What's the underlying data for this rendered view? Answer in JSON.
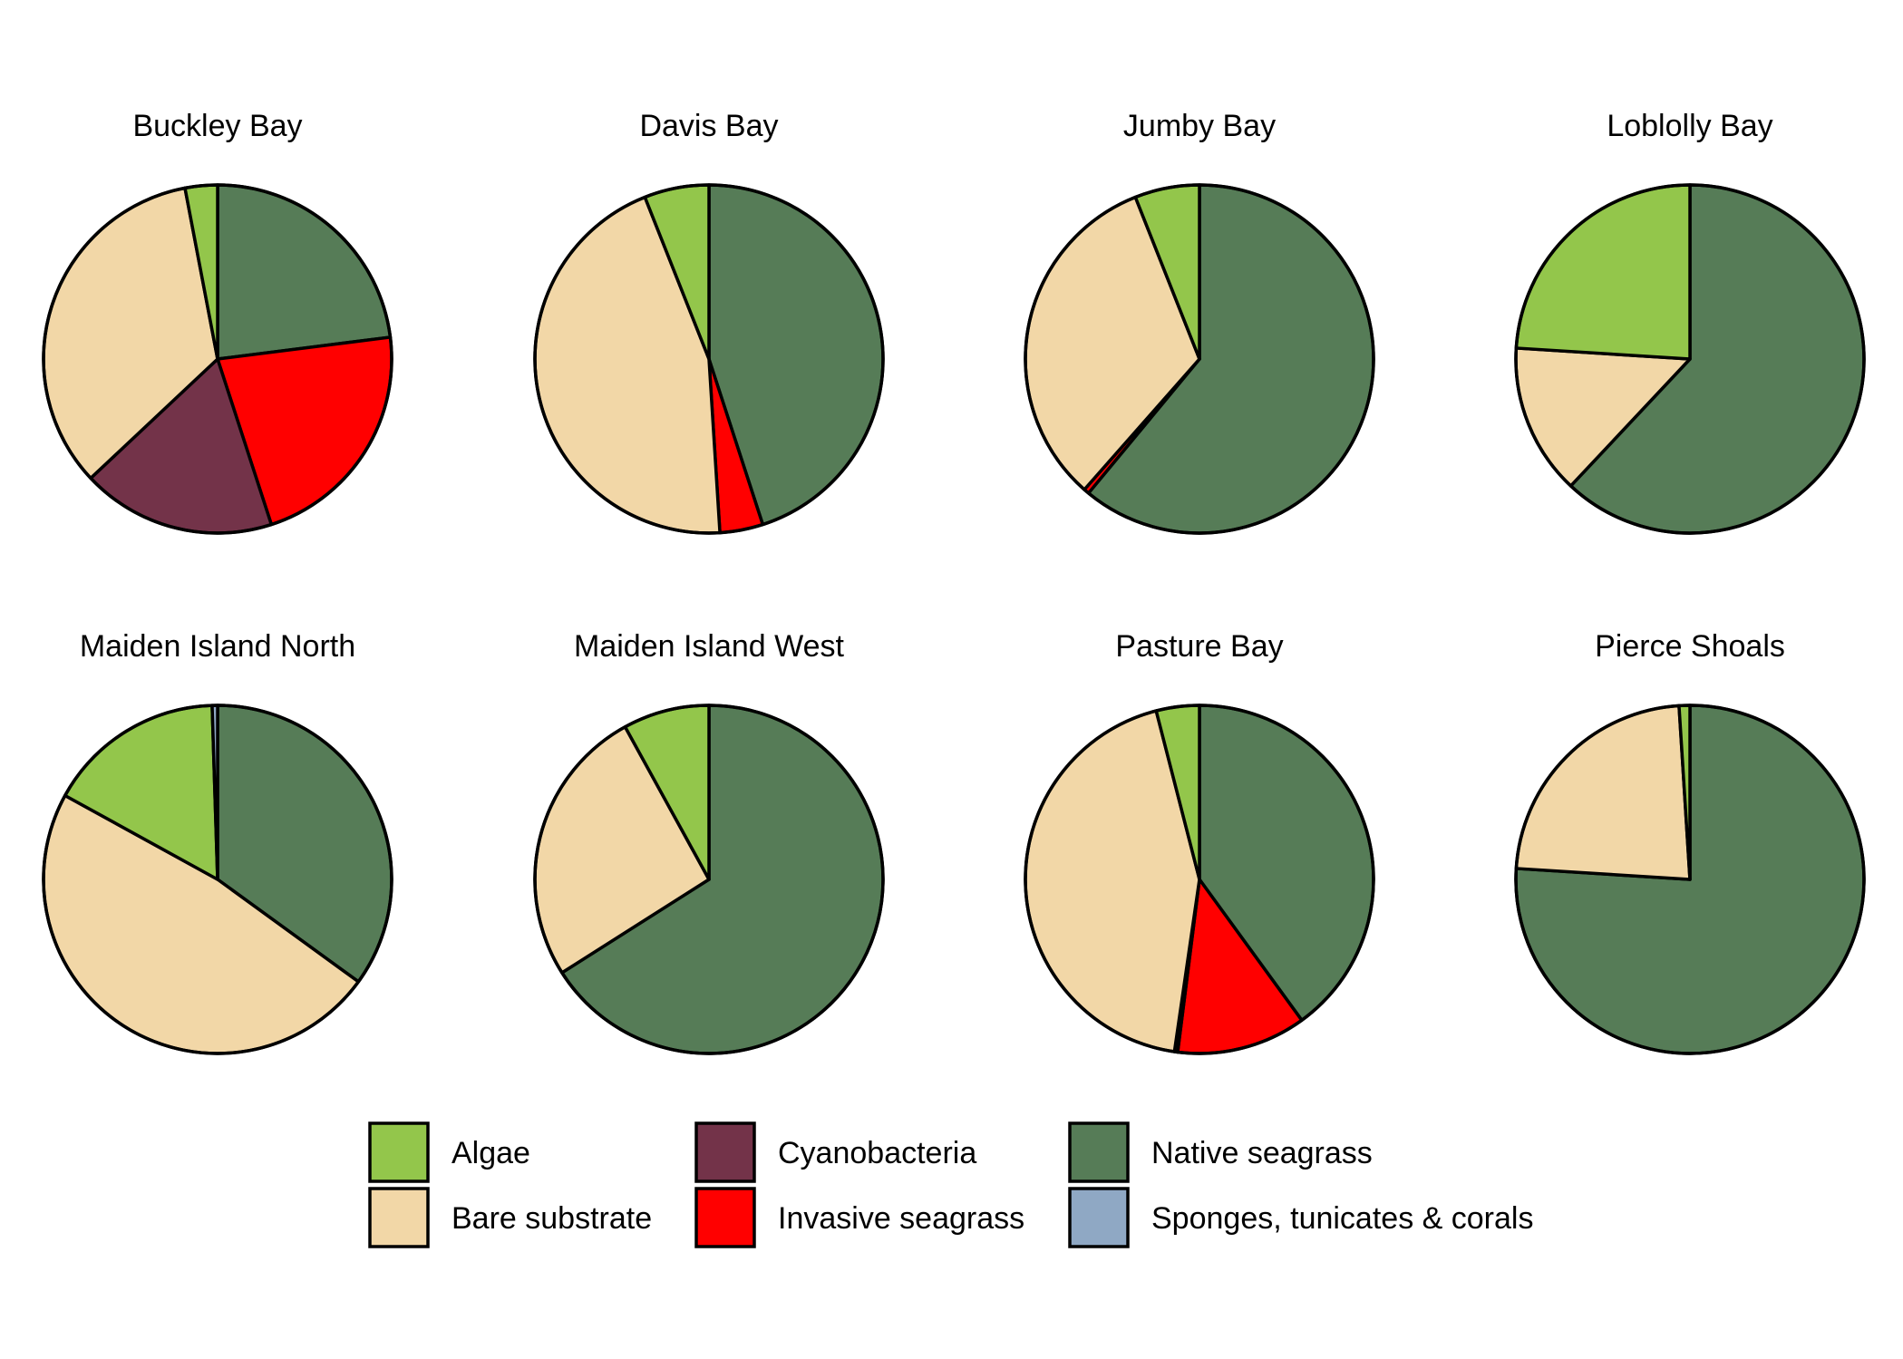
{
  "chart_data": {
    "type": "pie",
    "categories": [
      "Algae",
      "Bare substrate",
      "Cyanobacteria",
      "Invasive seagrass",
      "Native seagrass",
      "Sponges, tunicates & corals"
    ],
    "colors": {
      "Algae": "#93c64b",
      "Bare substrate": "#f2d7a7",
      "Cyanobacteria": "#733349",
      "Invasive seagrass": "#ff0000",
      "Native seagrass": "#567c57",
      "Sponges, tunicates & corals": "#8fa8c4"
    },
    "legend": {
      "position": "bottom",
      "columns": [
        [
          "Algae",
          "Bare substrate"
        ],
        [
          "Cyanobacteria",
          "Invasive seagrass"
        ],
        [
          "Native seagrass",
          "Sponges, tunicates & corals"
        ]
      ]
    },
    "pies": [
      {
        "title": "Buckley Bay",
        "slices": [
          {
            "category": "Native seagrass",
            "value": 23
          },
          {
            "category": "Invasive seagrass",
            "value": 22
          },
          {
            "category": "Cyanobacteria",
            "value": 18
          },
          {
            "category": "Bare substrate",
            "value": 34
          },
          {
            "category": "Algae",
            "value": 3
          }
        ]
      },
      {
        "title": "Davis Bay",
        "slices": [
          {
            "category": "Native seagrass",
            "value": 45
          },
          {
            "category": "Invasive seagrass",
            "value": 4
          },
          {
            "category": "Bare substrate",
            "value": 45
          },
          {
            "category": "Algae",
            "value": 6
          }
        ]
      },
      {
        "title": "Jumby Bay",
        "slices": [
          {
            "category": "Native seagrass",
            "value": 61
          },
          {
            "category": "Invasive seagrass",
            "value": 0.5
          },
          {
            "category": "Bare substrate",
            "value": 32.5
          },
          {
            "category": "Algae",
            "value": 6
          }
        ]
      },
      {
        "title": "Loblolly Bay",
        "slices": [
          {
            "category": "Native seagrass",
            "value": 62
          },
          {
            "category": "Bare substrate",
            "value": 14
          },
          {
            "category": "Algae",
            "value": 24
          }
        ]
      },
      {
        "title": "Maiden Island North",
        "slices": [
          {
            "category": "Native seagrass",
            "value": 35
          },
          {
            "category": "Bare substrate",
            "value": 48
          },
          {
            "category": "Algae",
            "value": 16.5
          },
          {
            "category": "Sponges, tunicates & corals",
            "value": 0.5
          }
        ]
      },
      {
        "title": "Maiden Island West",
        "slices": [
          {
            "category": "Native seagrass",
            "value": 66
          },
          {
            "category": "Bare substrate",
            "value": 26
          },
          {
            "category": "Algae",
            "value": 8
          }
        ]
      },
      {
        "title": "Pasture Bay",
        "slices": [
          {
            "category": "Native seagrass",
            "value": 40
          },
          {
            "category": "Invasive seagrass",
            "value": 12
          },
          {
            "category": "Cyanobacteria",
            "value": 0.3
          },
          {
            "category": "Bare substrate",
            "value": 43.7
          },
          {
            "category": "Algae",
            "value": 4
          }
        ]
      },
      {
        "title": "Pierce Shoals",
        "slices": [
          {
            "category": "Native seagrass",
            "value": 76
          },
          {
            "category": "Bare substrate",
            "value": 23
          },
          {
            "category": "Algae",
            "value": 1
          }
        ]
      }
    ]
  }
}
